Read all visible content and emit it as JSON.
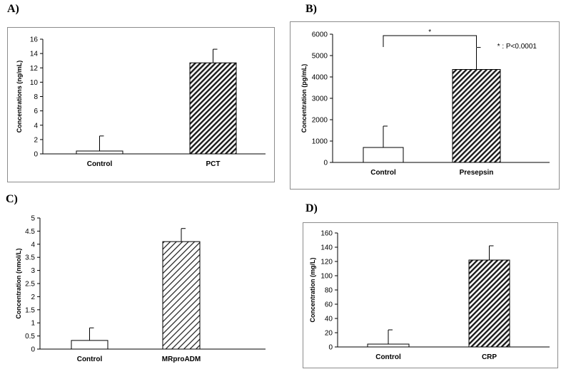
{
  "chart_data": [
    {
      "panel": "A)",
      "type": "bar",
      "categories": [
        "Control",
        "PCT"
      ],
      "values": [
        0.4,
        12.7
      ],
      "errors": [
        2.1,
        1.9
      ],
      "patterns": [
        "none",
        "dense"
      ],
      "ylabel": "Concentrations (ng/mL)",
      "ylim": [
        0,
        16
      ],
      "yticks": [
        "0",
        "2",
        "4",
        "6",
        "8",
        "10",
        "12",
        "14",
        "16"
      ],
      "grid": false
    },
    {
      "panel": "B)",
      "type": "bar",
      "categories": [
        "Control",
        "Presepsin"
      ],
      "values": [
        700,
        4350
      ],
      "errors": [
        1000,
        1030
      ],
      "patterns": [
        "none",
        "dense"
      ],
      "ylabel": "Concentration (pg/mL)",
      "ylim": [
        0,
        6000
      ],
      "yticks": [
        "0",
        "1000",
        "2000",
        "3000",
        "4000",
        "5000",
        "6000"
      ],
      "significance": "*",
      "annotation": "* : P<0.0001",
      "grid": false
    },
    {
      "panel": "C)",
      "type": "bar",
      "categories": [
        "Control",
        "MRproADM"
      ],
      "values": [
        0.33,
        4.1
      ],
      "errors": [
        0.48,
        0.5
      ],
      "patterns": [
        "none",
        "light"
      ],
      "ylabel": "Concentration (nmol/L)",
      "ylim": [
        0,
        5
      ],
      "yticks": [
        "0",
        "0.5",
        "1",
        "1.5",
        "2",
        "2.5",
        "3",
        "3.5",
        "4",
        "4.5",
        "5"
      ],
      "grid": false
    },
    {
      "panel": "D)",
      "type": "bar",
      "categories": [
        "Control",
        "CRP"
      ],
      "values": [
        4,
        122
      ],
      "errors": [
        20,
        20
      ],
      "patterns": [
        "none",
        "dense"
      ],
      "ylabel": "Concentration (mg/L)",
      "ylim": [
        0,
        160
      ],
      "yticks": [
        "0",
        "20",
        "40",
        "60",
        "80",
        "100",
        "120",
        "140",
        "160"
      ],
      "grid": false
    }
  ]
}
